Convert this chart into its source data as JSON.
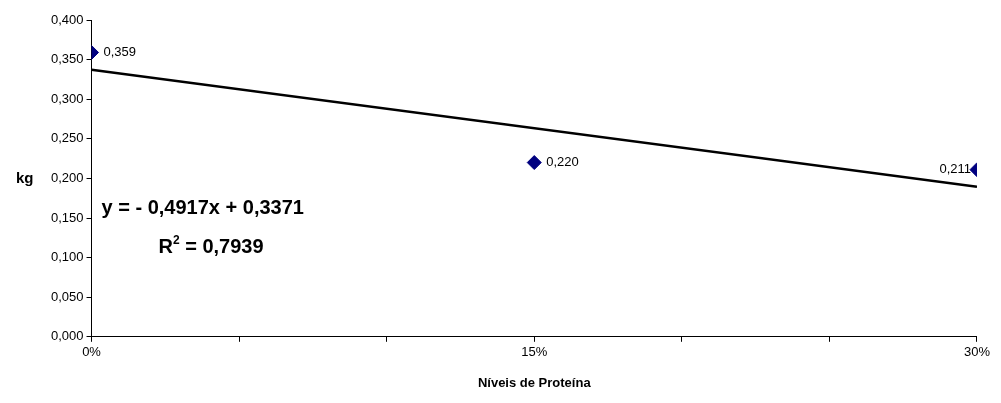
{
  "chart_data": {
    "type": "scatter",
    "xlabel": "Níveis de Proteína",
    "ylabel": "kg",
    "x": [
      0,
      0.15,
      0.3
    ],
    "series": [
      {
        "color": "#000080",
        "values": [
          0.359,
          0.22,
          0.211
        ],
        "value_labels": [
          "0,359",
          "0,220",
          "0,211"
        ],
        "marker": "diamond"
      },
      {
        "type": "line",
        "color": "#000000",
        "x": [
          0,
          0.3
        ],
        "values": [
          0.3371,
          0.18959
        ],
        "marker": "none",
        "line_style": "solid"
      }
    ],
    "xlim": [
      0,
      0.3
    ],
    "xticks": [
      {
        "value": 0,
        "label": "0%"
      },
      {
        "value": 0.15,
        "label": "15%"
      },
      {
        "value": 0.3,
        "label": "30%"
      }
    ],
    "ylim": [
      0,
      0.4
    ],
    "yticks": [
      {
        "value": 0,
        "label": "0,000"
      },
      {
        "value": 0.05,
        "label": "0,050"
      },
      {
        "value": 0.1,
        "label": "0,100"
      },
      {
        "value": 0.15,
        "label": "0,150"
      },
      {
        "value": 0.2,
        "label": "0,200"
      },
      {
        "value": 0.25,
        "label": "0,250"
      },
      {
        "value": 0.3,
        "label": "0,300"
      },
      {
        "value": 0.35,
        "label": "0,350"
      },
      {
        "value": 0.4,
        "label": "0,400"
      }
    ],
    "annotations": [
      "y = - 0,4917x + 0,3371",
      "R$^{2}$ = 0,7939"
    ],
    "legend": false
  }
}
